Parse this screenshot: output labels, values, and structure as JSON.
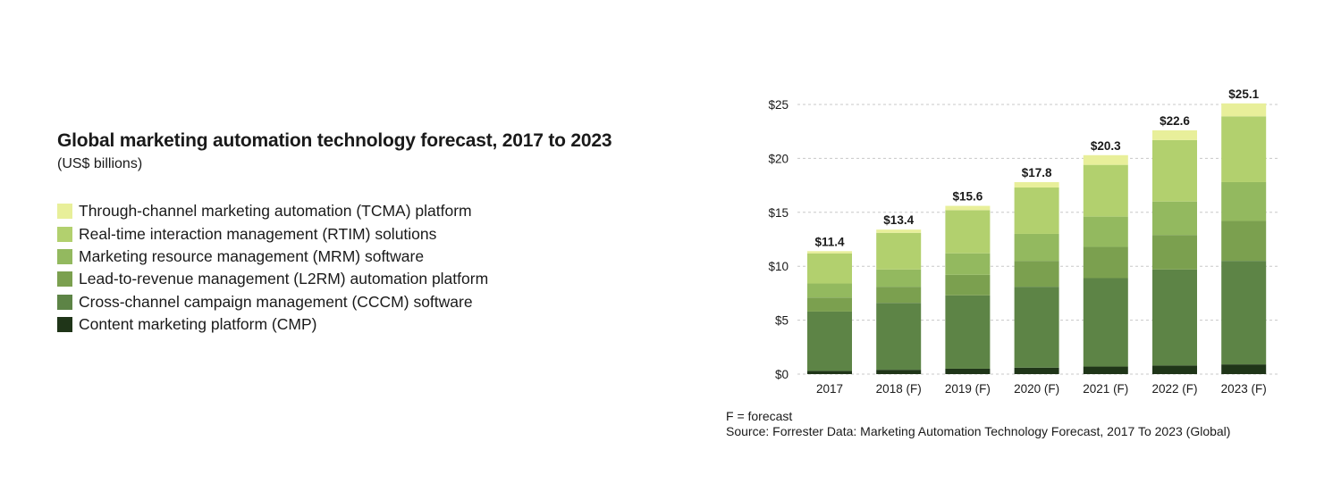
{
  "chart_data": {
    "type": "bar",
    "stacked": true,
    "title": "Global marketing automation technology forecast, 2017 to 2023",
    "subtitle": "(US$ billions)",
    "categories": [
      "2017",
      "2018 (F)",
      "2019 (F)",
      "2020 (F)",
      "2021 (F)",
      "2022 (F)",
      "2023 (F)"
    ],
    "totals": [
      11.4,
      13.4,
      15.6,
      17.8,
      20.3,
      22.6,
      25.1
    ],
    "total_labels": [
      "$11.4",
      "$13.4",
      "$15.6",
      "$17.8",
      "$20.3",
      "$22.6",
      "$25.1"
    ],
    "series": [
      {
        "name": "Content marketing platform (CMP)",
        "color": "#1f3518",
        "values": [
          0.3,
          0.4,
          0.5,
          0.6,
          0.7,
          0.8,
          0.9
        ]
      },
      {
        "name": "Cross-channel campaign management (CCCM) software",
        "color": "#5d8446",
        "values": [
          5.5,
          6.2,
          6.8,
          7.5,
          8.2,
          8.9,
          9.6
        ]
      },
      {
        "name": "Lead-to-revenue management (L2RM) automation platform",
        "color": "#7ba04f",
        "values": [
          1.3,
          1.5,
          1.9,
          2.4,
          2.9,
          3.2,
          3.7
        ]
      },
      {
        "name": "Marketing resource management (MRM) software",
        "color": "#93b95f",
        "values": [
          1.3,
          1.6,
          2.0,
          2.5,
          2.8,
          3.1,
          3.6
        ]
      },
      {
        "name": "Real-time interaction management (RTIM) solutions",
        "color": "#b2d06e",
        "values": [
          2.8,
          3.4,
          4.0,
          4.3,
          4.8,
          5.7,
          6.1
        ]
      },
      {
        "name": "Through-channel marketing automation (TCMA) platform",
        "color": "#e8ef9a",
        "values": [
          0.2,
          0.3,
          0.4,
          0.5,
          0.9,
          0.9,
          1.2
        ]
      }
    ],
    "yticks": [
      "$0",
      "$5",
      "$10",
      "$15",
      "$20",
      "$25"
    ],
    "ylim": [
      0,
      25
    ],
    "grid": "dashed horizontal",
    "legend_placement": "left"
  },
  "legend_order": [
    5,
    4,
    3,
    2,
    1,
    0
  ],
  "footnotes": [
    "F = forecast",
    "Source: Forrester Data: Marketing Automation Technology Forecast, 2017 To 2023 (Global)"
  ]
}
